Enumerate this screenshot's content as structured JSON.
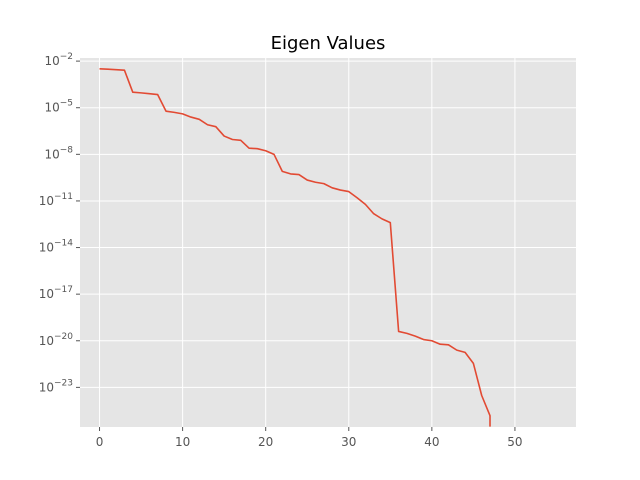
{
  "chart_data": {
    "type": "line",
    "title": "Eigen Values",
    "xlabel": "",
    "ylabel": "",
    "xlim": [
      -2.35,
      57.35
    ],
    "ylim": [
      -25.55,
      -1.8
    ],
    "yscale": "log",
    "grid": true,
    "x_ticks": [
      0,
      10,
      20,
      30,
      40,
      50
    ],
    "y_ticks": [
      {
        "base": "10",
        "exp": "−2",
        "value": 0.01
      },
      {
        "base": "10",
        "exp": "−5",
        "value": 1e-05
      },
      {
        "base": "10",
        "exp": "−8",
        "value": 1e-08
      },
      {
        "base": "10",
        "exp": "−11",
        "value": 1e-11
      },
      {
        "base": "10",
        "exp": "−14",
        "value": 1e-14
      },
      {
        "base": "10",
        "exp": "−17",
        "value": 1e-17
      },
      {
        "base": "10",
        "exp": "−20",
        "value": 1e-20
      },
      {
        "base": "10",
        "exp": "−23",
        "value": 1e-23
      }
    ],
    "series": [
      {
        "color": "#E24A33",
        "x": [
          0,
          1,
          2,
          3,
          4,
          5,
          6,
          7,
          8,
          9,
          10,
          11,
          12,
          13,
          14,
          15,
          16,
          17,
          18,
          19,
          20,
          21,
          22,
          23,
          24,
          25,
          26,
          27,
          28,
          29,
          30,
          31,
          32,
          33,
          34,
          35,
          36,
          37,
          38,
          39,
          40,
          41,
          42,
          43,
          44,
          45,
          46,
          47,
          47
        ],
        "y": [
          0.0032,
          0.003,
          0.0028,
          0.0026,
          0.0001,
          9e-05,
          8e-05,
          7e-05,
          6e-06,
          5e-06,
          4e-06,
          2.5e-06,
          1.8e-06,
          8e-07,
          6e-07,
          1.5e-07,
          9e-08,
          8e-08,
          2.5e-08,
          2.3e-08,
          1.7e-08,
          1e-08,
          8e-10,
          5.5e-10,
          5e-10,
          2.2e-10,
          1.6e-10,
          1.3e-10,
          7e-11,
          5e-11,
          4e-11,
          1.6e-11,
          6e-12,
          1.5e-12,
          7e-13,
          4e-13,
          4e-20,
          3e-20,
          2e-20,
          1.2e-20,
          1e-20,
          6e-21,
          5.5e-21,
          2.5e-21,
          1.8e-21,
          3.5e-22,
          3e-24,
          1.5e-25,
          3e-26
        ]
      }
    ]
  }
}
